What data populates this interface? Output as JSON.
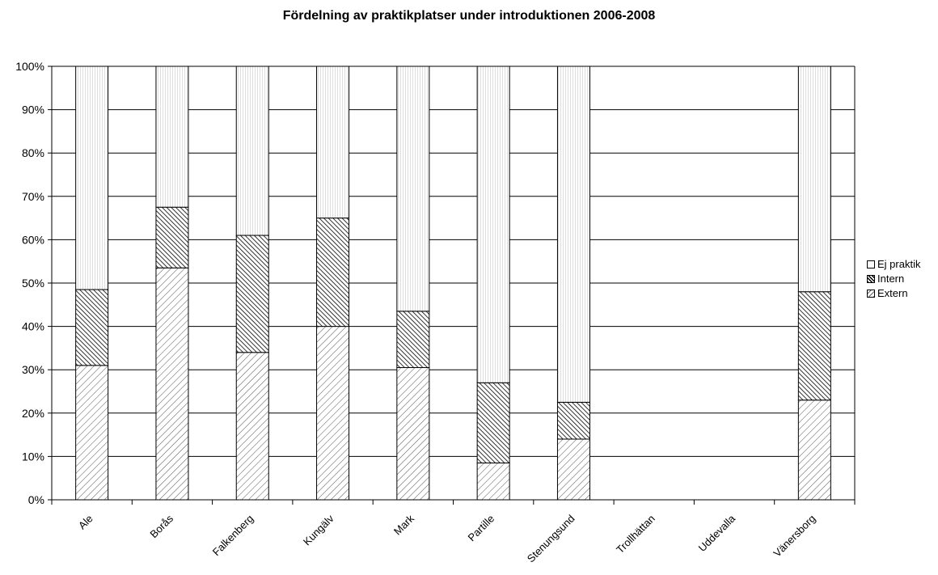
{
  "chart_data": {
    "type": "bar",
    "stacked": true,
    "normalized": true,
    "title": "Fördelning av praktikplatser under introduktionen 2006-2008",
    "categories": [
      "Ale",
      "Borås",
      "Falkenberg",
      "Kungälv",
      "Mark",
      "Partille",
      "Stenungsund",
      "Trollhättan",
      "Uddevalla",
      "Vänersborg"
    ],
    "series": [
      {
        "name": "Extern",
        "pattern": "diagonal-forward",
        "values": [
          31,
          53.5,
          34,
          40,
          30.5,
          8.5,
          14,
          0,
          0,
          23
        ]
      },
      {
        "name": "Intern",
        "pattern": "diagonal-back-dense",
        "values": [
          17.5,
          14,
          27,
          25,
          13,
          18.5,
          8.5,
          0,
          0,
          25
        ]
      },
      {
        "name": "Ej praktik",
        "pattern": "vertical-fine",
        "values": [
          51.5,
          32.5,
          39,
          35,
          56.5,
          73,
          77.5,
          0,
          0,
          52
        ]
      }
    ],
    "ylim": [
      0,
      100
    ],
    "yticks": [
      "0%",
      "10%",
      "20%",
      "30%",
      "40%",
      "50%",
      "60%",
      "70%",
      "80%",
      "90%",
      "100%"
    ],
    "grid": true,
    "legend": {
      "position": "right",
      "order": [
        "Ej praktik",
        "Intern",
        "Extern"
      ]
    },
    "colors": {
      "bar_fill": "#ffffff",
      "pattern_stroke": "#000000",
      "fine_stroke": "#b0b0b0",
      "grid": "#000000"
    }
  }
}
